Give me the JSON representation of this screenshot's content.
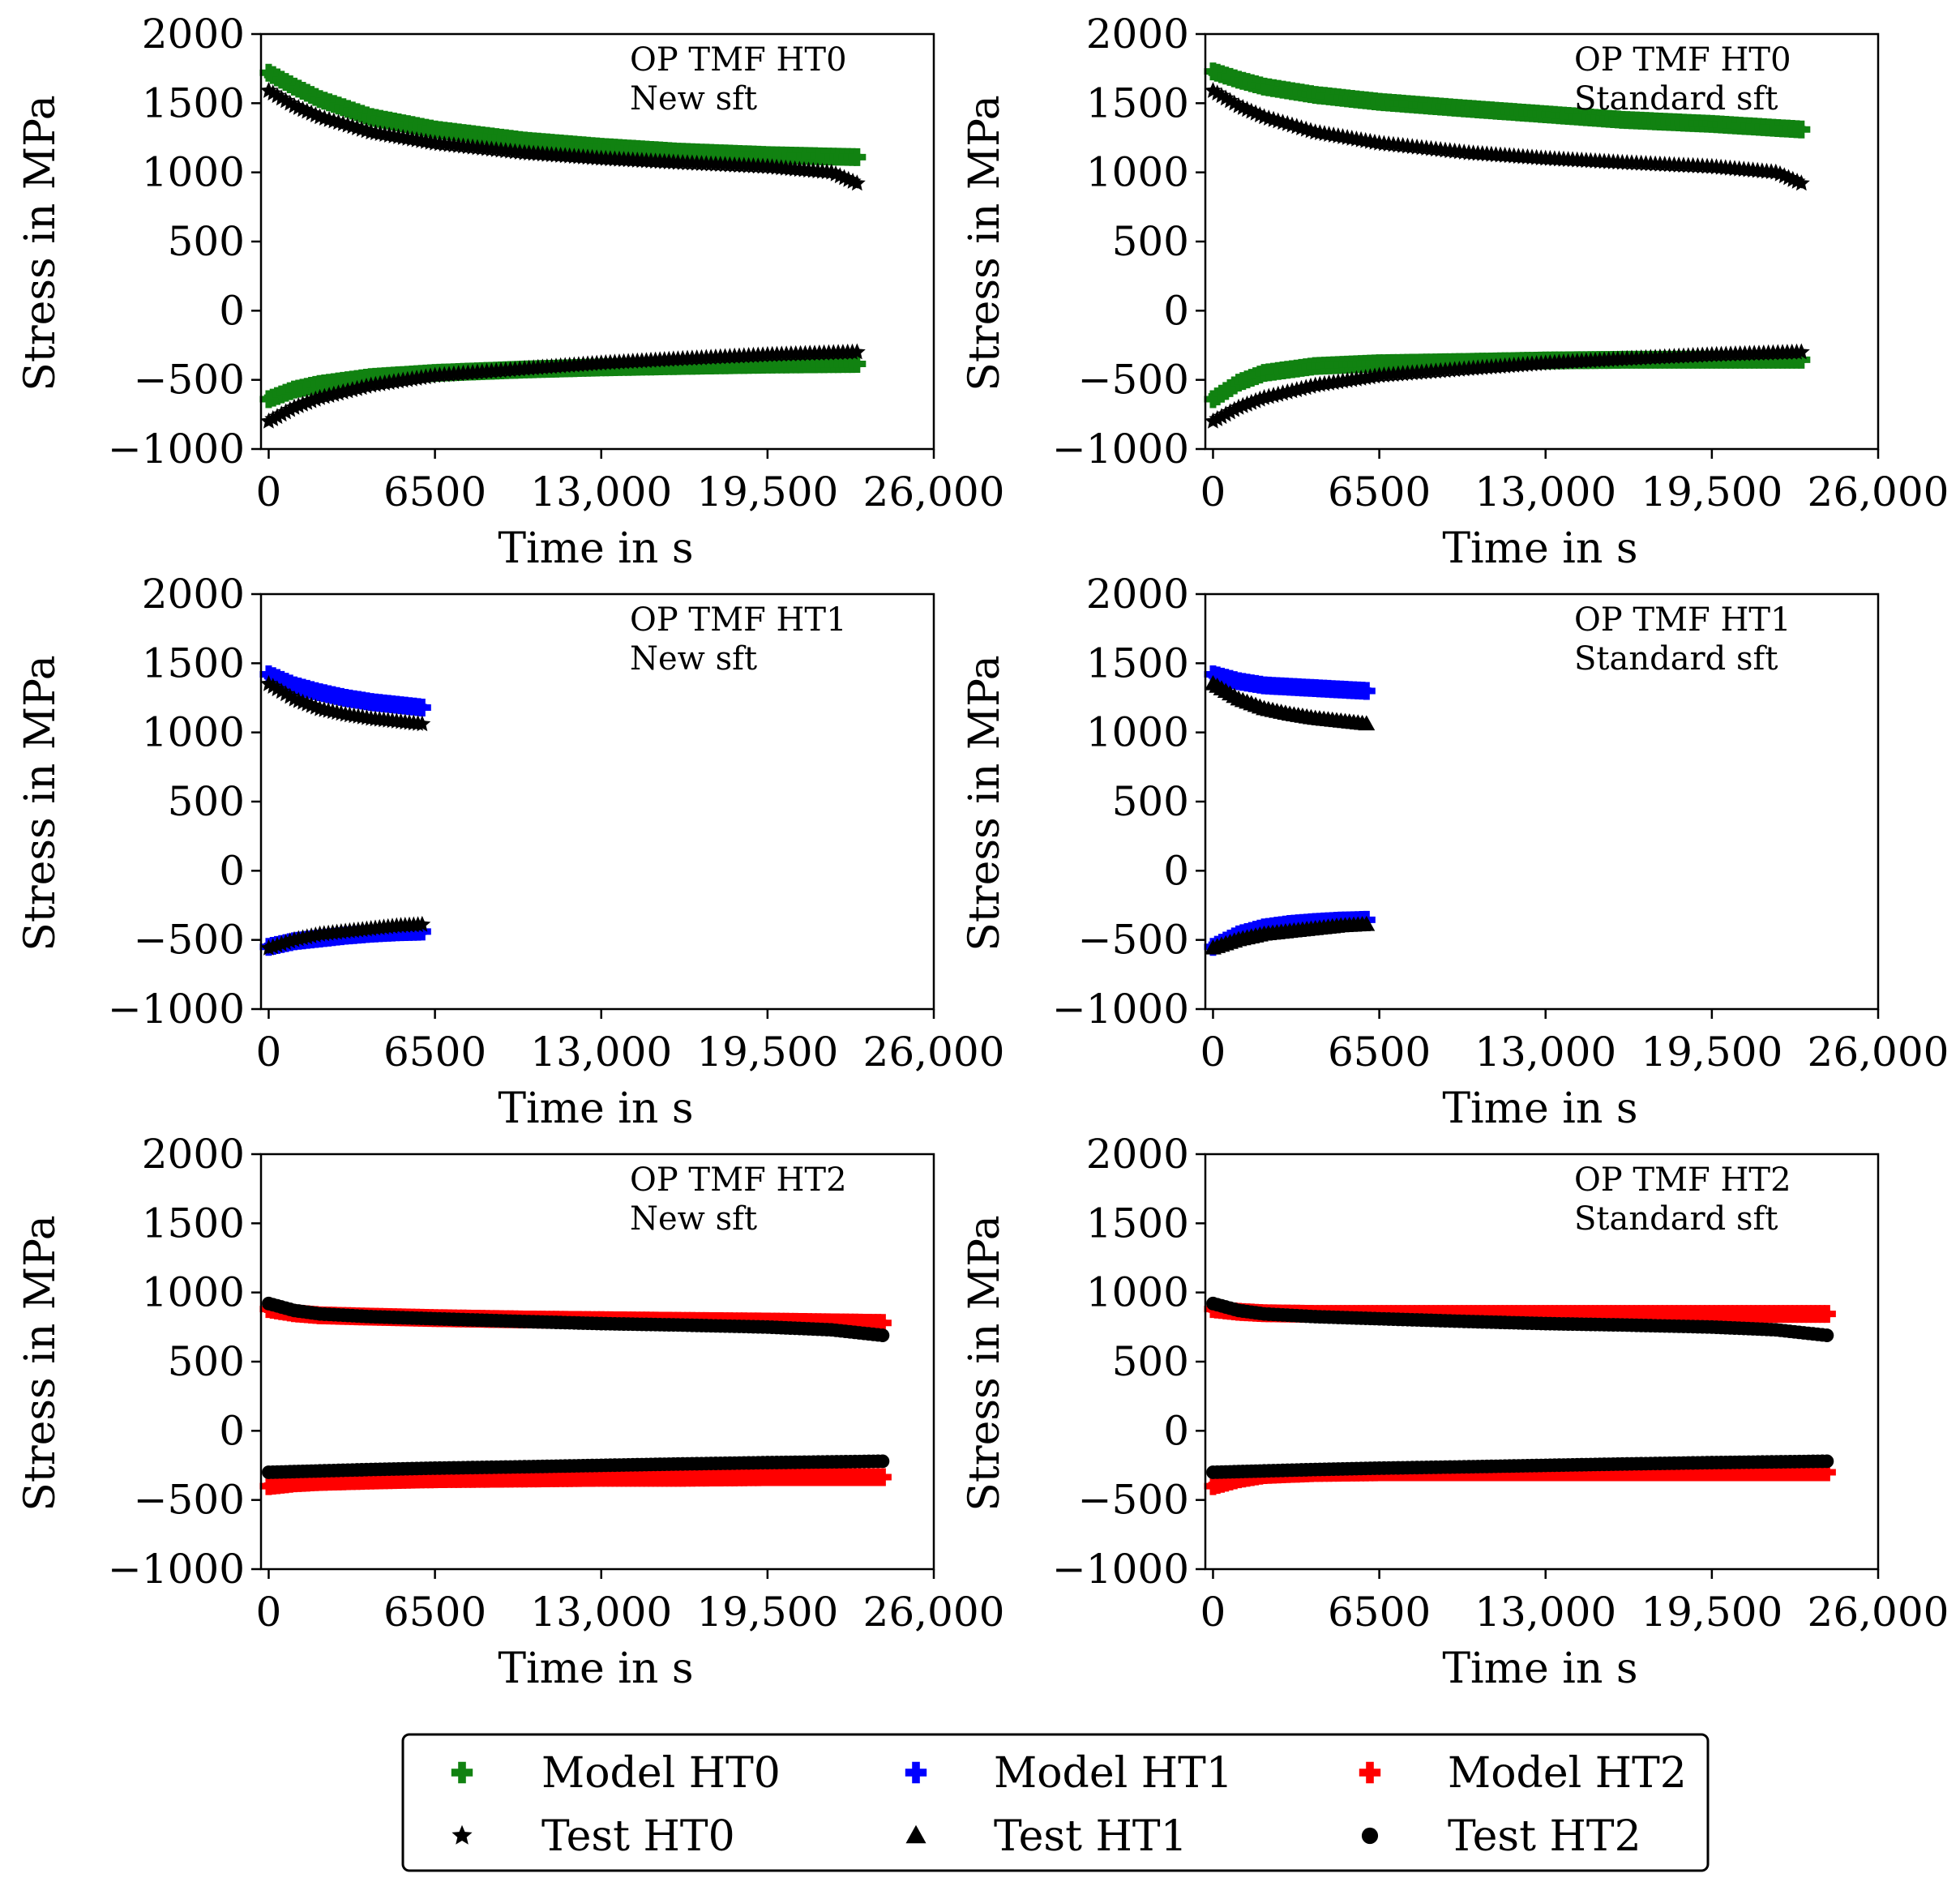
{
  "figure": {
    "axis_xlabel": "Time in s",
    "axis_ylabel": "Stress in MPa",
    "x_ticks": [
      "0",
      "6500",
      "13,000",
      "19,500",
      "26,000"
    ],
    "y_ticks": [
      "2000",
      "1500",
      "1000",
      "500",
      "0",
      "−500",
      "−1000"
    ]
  },
  "legend": {
    "items": [
      {
        "label": "Model HT0",
        "color": "#118211",
        "marker": "plus"
      },
      {
        "label": "Model HT1",
        "color": "#0000ff",
        "marker": "plus"
      },
      {
        "label": "Model HT2",
        "color": "#ff0000",
        "marker": "plus"
      },
      {
        "label": "Test HT0",
        "color": "#000000",
        "marker": "star"
      },
      {
        "label": "Test HT1",
        "color": "#000000",
        "marker": "triangle"
      },
      {
        "label": "Test HT2",
        "color": "#000000",
        "marker": "circle"
      }
    ]
  },
  "chart_data": [
    {
      "type": "scatter",
      "annotation": [
        "OP TMF HT0",
        "New sft"
      ],
      "xlabel": "Time in s",
      "ylabel": "Stress in MPa",
      "xlim": [
        -300,
        26000
      ],
      "ylim": [
        -1000,
        2000
      ],
      "series": [
        {
          "name": "Model HT0",
          "color": "#118211",
          "marker": "plus",
          "x": [
            0,
            1000,
            2000,
            4000,
            6500,
            10000,
            13000,
            16000,
            19500,
            23000
          ],
          "y": [
            1720,
            1620,
            1530,
            1400,
            1310,
            1230,
            1185,
            1150,
            1125,
            1110
          ]
        },
        {
          "name": "Model HT0",
          "color": "#118211",
          "marker": "plus",
          "x": [
            0,
            1000,
            2000,
            4000,
            6500,
            10000,
            13000,
            16000,
            19500,
            23000
          ],
          "y": [
            -640,
            -570,
            -530,
            -480,
            -450,
            -425,
            -410,
            -400,
            -390,
            -385
          ]
        },
        {
          "name": "Test HT0",
          "color": "#000000",
          "marker": "star",
          "x": [
            0,
            1000,
            2000,
            4000,
            6500,
            10000,
            13000,
            16000,
            19500,
            22000,
            23000
          ],
          "y": [
            1590,
            1480,
            1400,
            1290,
            1210,
            1140,
            1100,
            1070,
            1040,
            1000,
            920
          ]
        },
        {
          "name": "Test HT0",
          "color": "#000000",
          "marker": "star",
          "x": [
            0,
            1000,
            2000,
            4000,
            6500,
            10000,
            13000,
            16000,
            19500,
            23000
          ],
          "y": [
            -800,
            -700,
            -630,
            -540,
            -470,
            -420,
            -380,
            -350,
            -320,
            -300
          ]
        }
      ]
    },
    {
      "type": "scatter",
      "annotation": [
        "OP TMF HT0",
        "Standard sft"
      ],
      "xlabel": "Time in s",
      "ylabel": "Stress in MPa",
      "xlim": [
        -300,
        26000
      ],
      "ylim": [
        -1000,
        2000
      ],
      "series": [
        {
          "name": "Model HT0",
          "color": "#118211",
          "marker": "plus",
          "x": [
            0,
            1000,
            2000,
            4000,
            6500,
            10000,
            13000,
            16000,
            19500,
            23000
          ],
          "y": [
            1730,
            1670,
            1620,
            1560,
            1510,
            1460,
            1420,
            1380,
            1350,
            1310
          ]
        },
        {
          "name": "Model HT0",
          "color": "#118211",
          "marker": "plus",
          "x": [
            0,
            1000,
            2000,
            4000,
            6500,
            10000,
            13000,
            16000,
            19500,
            23000
          ],
          "y": [
            -640,
            -520,
            -450,
            -400,
            -380,
            -370,
            -360,
            -355,
            -355,
            -355
          ]
        },
        {
          "name": "Test HT0",
          "color": "#000000",
          "marker": "star",
          "x": [
            0,
            1000,
            2000,
            4000,
            6500,
            10000,
            13000,
            16000,
            19500,
            22000,
            23000
          ],
          "y": [
            1590,
            1480,
            1400,
            1290,
            1210,
            1140,
            1100,
            1070,
            1040,
            1000,
            920
          ]
        },
        {
          "name": "Test HT0",
          "color": "#000000",
          "marker": "star",
          "x": [
            0,
            1000,
            2000,
            4000,
            6500,
            10000,
            13000,
            16000,
            19500,
            23000
          ],
          "y": [
            -800,
            -700,
            -630,
            -540,
            -470,
            -420,
            -380,
            -350,
            -320,
            -300
          ]
        }
      ]
    },
    {
      "type": "scatter",
      "annotation": [
        "OP TMF HT1",
        "New sft"
      ],
      "xlabel": "Time in s",
      "ylabel": "Stress in MPa",
      "xlim": [
        -300,
        26000
      ],
      "ylim": [
        -1000,
        2000
      ],
      "series": [
        {
          "name": "Model HT1",
          "color": "#0000ff",
          "marker": "plus",
          "x": [
            0,
            1000,
            2000,
            3000,
            4000,
            5000,
            6000
          ],
          "y": [
            1420,
            1340,
            1290,
            1250,
            1220,
            1200,
            1180
          ]
        },
        {
          "name": "Model HT1",
          "color": "#0000ff",
          "marker": "plus",
          "x": [
            0,
            1000,
            2000,
            3000,
            4000,
            5000,
            6000
          ],
          "y": [
            -550,
            -510,
            -490,
            -470,
            -455,
            -445,
            -440
          ]
        },
        {
          "name": "Test HT0",
          "color": "#000000",
          "marker": "star",
          "x": [
            0,
            1000,
            2000,
            3000,
            4000,
            5000,
            6000
          ],
          "y": [
            1350,
            1240,
            1170,
            1130,
            1100,
            1080,
            1060
          ]
        },
        {
          "name": "Test HT0",
          "color": "#000000",
          "marker": "star",
          "x": [
            0,
            1000,
            2000,
            3000,
            4000,
            5000,
            6000
          ],
          "y": [
            -560,
            -500,
            -460,
            -440,
            -420,
            -400,
            -390
          ]
        }
      ]
    },
    {
      "type": "scatter",
      "annotation": [
        "OP TMF HT1",
        "Standard sft"
      ],
      "xlabel": "Time in s",
      "ylabel": "Stress in MPa",
      "xlim": [
        -300,
        26000
      ],
      "ylim": [
        -1000,
        2000
      ],
      "series": [
        {
          "name": "Model HT1",
          "color": "#0000ff",
          "marker": "plus",
          "x": [
            0,
            1000,
            2000,
            3000,
            4000,
            5000,
            6000
          ],
          "y": [
            1420,
            1370,
            1340,
            1330,
            1320,
            1310,
            1300
          ]
        },
        {
          "name": "Model HT1",
          "color": "#0000ff",
          "marker": "plus",
          "x": [
            0,
            1000,
            2000,
            3000,
            4000,
            5000,
            6000
          ],
          "y": [
            -550,
            -460,
            -410,
            -385,
            -370,
            -360,
            -355
          ]
        },
        {
          "name": "Test HT1",
          "color": "#000000",
          "marker": "triangle",
          "x": [
            0,
            1000,
            2000,
            3000,
            4000,
            5000,
            6000
          ],
          "y": [
            1350,
            1240,
            1170,
            1130,
            1100,
            1080,
            1060
          ]
        },
        {
          "name": "Test HT1",
          "color": "#000000",
          "marker": "triangle",
          "x": [
            0,
            1000,
            2000,
            3000,
            4000,
            5000,
            6000
          ],
          "y": [
            -560,
            -500,
            -460,
            -440,
            -420,
            -400,
            -390
          ]
        }
      ]
    },
    {
      "type": "scatter",
      "annotation": [
        "OP TMF HT2",
        "New sft"
      ],
      "xlabel": "Time in s",
      "ylabel": "Stress in MPa",
      "xlim": [
        -300,
        26000
      ],
      "ylim": [
        -1000,
        2000
      ],
      "series": [
        {
          "name": "Model HT2",
          "color": "#ff0000",
          "marker": "plus",
          "x": [
            0,
            1000,
            2000,
            4000,
            6500,
            10000,
            13000,
            16000,
            19500,
            24000
          ],
          "y": [
            880,
            850,
            835,
            825,
            815,
            805,
            800,
            795,
            790,
            780
          ]
        },
        {
          "name": "Model HT2",
          "color": "#ff0000",
          "marker": "plus",
          "x": [
            0,
            1000,
            2000,
            4000,
            6500,
            10000,
            13000,
            16000,
            19500,
            24000
          ],
          "y": [
            -400,
            -380,
            -370,
            -360,
            -350,
            -345,
            -340,
            -340,
            -335,
            -335
          ]
        },
        {
          "name": "Test HT2",
          "color": "#000000",
          "marker": "circle",
          "x": [
            0,
            1000,
            2000,
            4000,
            6500,
            10000,
            13000,
            16000,
            19500,
            22000,
            24000
          ],
          "y": [
            920,
            870,
            845,
            825,
            810,
            790,
            775,
            765,
            750,
            730,
            690
          ]
        },
        {
          "name": "Test HT2",
          "color": "#000000",
          "marker": "circle",
          "x": [
            0,
            1000,
            2000,
            4000,
            6500,
            10000,
            13000,
            16000,
            19500,
            24000
          ],
          "y": [
            -300,
            -295,
            -290,
            -280,
            -270,
            -260,
            -250,
            -240,
            -230,
            -220
          ]
        }
      ]
    },
    {
      "type": "scatter",
      "annotation": [
        "OP TMF HT2",
        "Standard sft"
      ],
      "xlabel": "Time in s",
      "ylabel": "Stress in MPa",
      "xlim": [
        -300,
        26000
      ],
      "ylim": [
        -1000,
        2000
      ],
      "series": [
        {
          "name": "Model HT2",
          "color": "#ff0000",
          "marker": "plus",
          "x": [
            0,
            1000,
            2000,
            4000,
            6500,
            10000,
            13000,
            16000,
            19500,
            24000
          ],
          "y": [
            880,
            860,
            850,
            845,
            845,
            845,
            845,
            845,
            845,
            845
          ]
        },
        {
          "name": "Model HT2",
          "color": "#ff0000",
          "marker": "plus",
          "x": [
            0,
            1000,
            2000,
            4000,
            6500,
            10000,
            13000,
            16000,
            19500,
            24000
          ],
          "y": [
            -400,
            -350,
            -320,
            -305,
            -300,
            -300,
            -300,
            -300,
            -300,
            -300
          ]
        },
        {
          "name": "Test HT2",
          "color": "#000000",
          "marker": "circle",
          "x": [
            0,
            1000,
            2000,
            4000,
            6500,
            10000,
            13000,
            16000,
            19500,
            22000,
            24000
          ],
          "y": [
            920,
            870,
            845,
            825,
            810,
            790,
            775,
            765,
            750,
            730,
            690
          ]
        },
        {
          "name": "Test HT2",
          "color": "#000000",
          "marker": "circle",
          "x": [
            0,
            1000,
            2000,
            4000,
            6500,
            10000,
            13000,
            16000,
            19500,
            24000
          ],
          "y": [
            -300,
            -295,
            -290,
            -280,
            -270,
            -260,
            -250,
            -240,
            -230,
            -220
          ]
        }
      ]
    }
  ]
}
